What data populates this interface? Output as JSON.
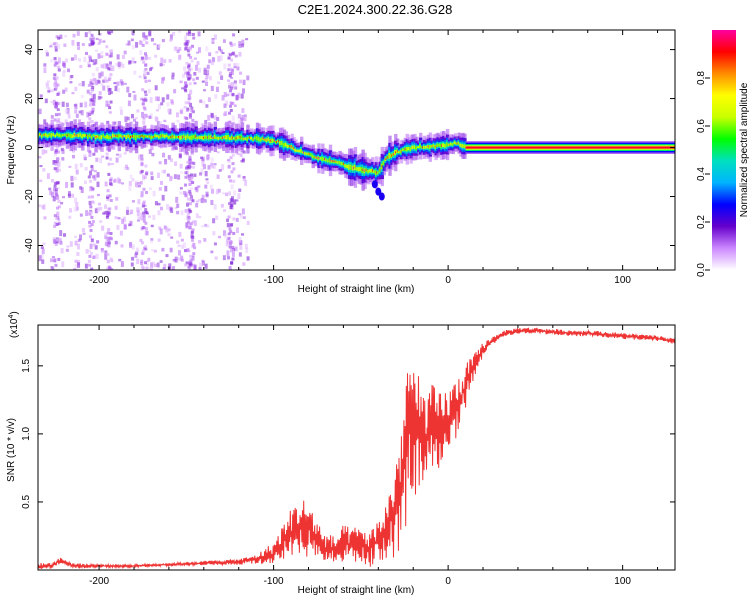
{
  "title": "C2E1.2024.300.22.36.G28",
  "chart_data": [
    {
      "type": "heatmap",
      "xlabel": "Height of straight line (km)",
      "ylabel": "Frequency (Hz)",
      "xlim": [
        -235,
        130
      ],
      "ylim": [
        -50,
        48
      ],
      "x_ticks": [
        -200,
        -100,
        0,
        100
      ],
      "y_ticks": [
        -40,
        -20,
        0,
        20,
        40
      ],
      "colorbar": {
        "label": "Normalized spectral amplitude",
        "range": [
          0.0,
          1.0
        ],
        "ticks": [
          "0.0",
          "0.2",
          "0.4",
          "0.6",
          "0.8"
        ],
        "colors": [
          "#ffffff",
          "#cc88ff",
          "#6600cc",
          "#0000ff",
          "#00b4ff",
          "#00e0c0",
          "#00ff00",
          "#c8ff00",
          "#ffff00",
          "#ff8c00",
          "#ff0000",
          "#ff00a0"
        ]
      },
      "ridge": {
        "x": [
          -235,
          -220,
          -200,
          -180,
          -160,
          -140,
          -120,
          -100,
          -90,
          -80,
          -70,
          -60,
          -50,
          -40,
          -35,
          -30,
          -20,
          -10,
          0,
          5,
          10,
          130
        ],
        "y": [
          5,
          5,
          4.5,
          4.5,
          4.5,
          4,
          4,
          3,
          0,
          -3,
          -5,
          -7,
          -9,
          -10,
          -4,
          -2,
          0,
          0.5,
          1,
          2,
          0,
          0
        ]
      }
    },
    {
      "type": "line",
      "xlabel": "Height of straight line (km)",
      "ylabel": "SNR (10 * v/v)",
      "y_multiplier": "(x10",
      "y_multiplier_exp": "4",
      "xlim": [
        -235,
        130
      ],
      "ylim": [
        0,
        1.8
      ],
      "x_ticks": [
        -200,
        -100,
        0,
        100
      ],
      "y_ticks": [
        0.5,
        1.0,
        1.5
      ],
      "series": [
        {
          "color": "#ee3333",
          "x": [
            -235,
            -228,
            -222,
            -215,
            -200,
            -180,
            -160,
            -140,
            -120,
            -110,
            -100,
            -95,
            -90,
            -85,
            -80,
            -75,
            -70,
            -65,
            -60,
            -55,
            -50,
            -45,
            -40,
            -35,
            -30,
            -25,
            -22,
            -20,
            -17,
            -15,
            -10,
            -5,
            0,
            5,
            10,
            15,
            20,
            25,
            30,
            40,
            50,
            60,
            70,
            80,
            90,
            100,
            110,
            120,
            130
          ],
          "y": [
            0.03,
            0.03,
            0.07,
            0.03,
            0.03,
            0.03,
            0.04,
            0.05,
            0.06,
            0.08,
            0.12,
            0.2,
            0.28,
            0.32,
            0.3,
            0.22,
            0.16,
            0.14,
            0.2,
            0.18,
            0.2,
            0.15,
            0.22,
            0.3,
            0.45,
            0.75,
            1.2,
            0.9,
            1.0,
            0.95,
            1.05,
            1.0,
            1.1,
            1.2,
            1.35,
            1.5,
            1.62,
            1.68,
            1.73,
            1.76,
            1.76,
            1.75,
            1.74,
            1.74,
            1.73,
            1.72,
            1.71,
            1.7,
            1.68
          ],
          "noise": [
            0.02,
            0.02,
            0.02,
            0.02,
            0.01,
            0.01,
            0.01,
            0.015,
            0.02,
            0.03,
            0.08,
            0.12,
            0.16,
            0.2,
            0.2,
            0.14,
            0.1,
            0.1,
            0.12,
            0.12,
            0.12,
            0.12,
            0.14,
            0.2,
            0.35,
            0.5,
            0.55,
            0.5,
            0.45,
            0.35,
            0.3,
            0.28,
            0.22,
            0.2,
            0.15,
            0.08,
            0.05,
            0.03,
            0.02,
            0.02,
            0.02,
            0.02,
            0.02,
            0.02,
            0.02,
            0.02,
            0.02,
            0.02,
            0.02
          ]
        }
      ]
    }
  ]
}
